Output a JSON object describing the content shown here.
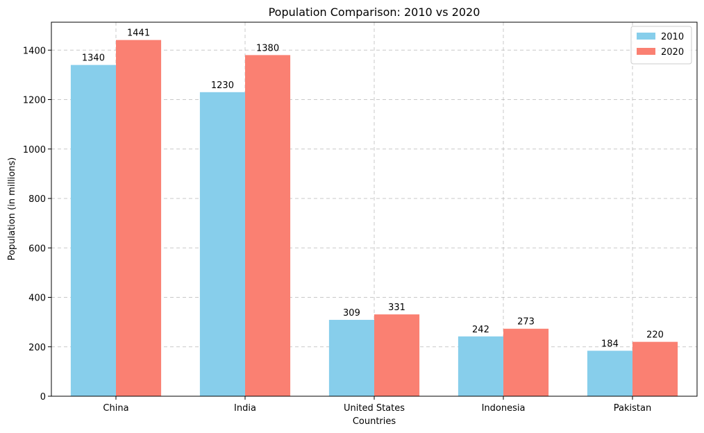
{
  "chart_data": {
    "type": "bar",
    "title": "Population Comparison: 2010 vs 2020",
    "xlabel": "Countries",
    "ylabel": "Population (in millions)",
    "categories": [
      "China",
      "India",
      "United States",
      "Indonesia",
      "Pakistan"
    ],
    "series": [
      {
        "name": "2010",
        "color": "#87CEEB",
        "values": [
          1340,
          1230,
          309,
          242,
          184
        ]
      },
      {
        "name": "2020",
        "color": "#FA8072",
        "values": [
          1441,
          1380,
          331,
          273,
          220
        ]
      }
    ],
    "ylim": [
      0,
      1513
    ],
    "yticks": [
      0,
      200,
      400,
      600,
      800,
      1000,
      1200,
      1400
    ],
    "grid": true,
    "grid_style": "dashed",
    "legend_position": "top-right"
  }
}
